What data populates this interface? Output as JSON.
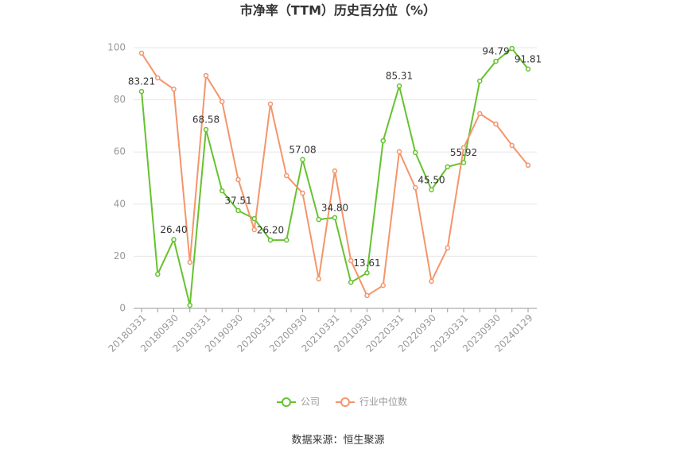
{
  "chart_data": {
    "type": "line",
    "title": "市净率（TTM）历史百分位（%）",
    "categories": [
      "20180331",
      null,
      "20180930",
      null,
      "20190331",
      null,
      "20190930",
      null,
      "20200331",
      null,
      "20200930",
      null,
      "20210331",
      null,
      "20210930",
      null,
      "20220331",
      null,
      "20220930",
      null,
      "20230331",
      null,
      "20230930",
      null,
      "20240129"
    ],
    "series": [
      {
        "name": "公司",
        "color": "#66c22e",
        "values": [
          83.21,
          13.1,
          26.4,
          1.2,
          68.58,
          45.1,
          37.51,
          34.4,
          26.2,
          26.2,
          57.08,
          34.1,
          34.8,
          10.0,
          13.61,
          64.3,
          85.31,
          59.8,
          45.5,
          54.3,
          55.92,
          87.2,
          94.79,
          99.7,
          91.81
        ],
        "value_labels": [
          "83.21",
          null,
          "26.40",
          null,
          "68.58",
          null,
          "37.51",
          null,
          "26.20",
          null,
          "57.08",
          null,
          "34.80",
          null,
          "13.61",
          null,
          "85.31",
          null,
          "45.50",
          null,
          "55.92",
          null,
          "94.79",
          null,
          "91.81"
        ]
      },
      {
        "name": "行业中位数",
        "color": "#f4956b",
        "values": [
          97.9,
          88.4,
          84.1,
          17.7,
          89.3,
          79.3,
          49.4,
          30.2,
          78.4,
          50.9,
          44.2,
          11.3,
          52.7,
          18.3,
          4.9,
          8.8,
          60.1,
          46.3,
          10.4,
          23.2,
          61.6,
          74.7,
          70.7,
          62.5,
          54.9
        ]
      }
    ],
    "ylim": [
      0,
      100
    ],
    "yticks": [
      0,
      20,
      40,
      60,
      80,
      100
    ],
    "grid": true
  },
  "source": "数据来源：恒生聚源"
}
